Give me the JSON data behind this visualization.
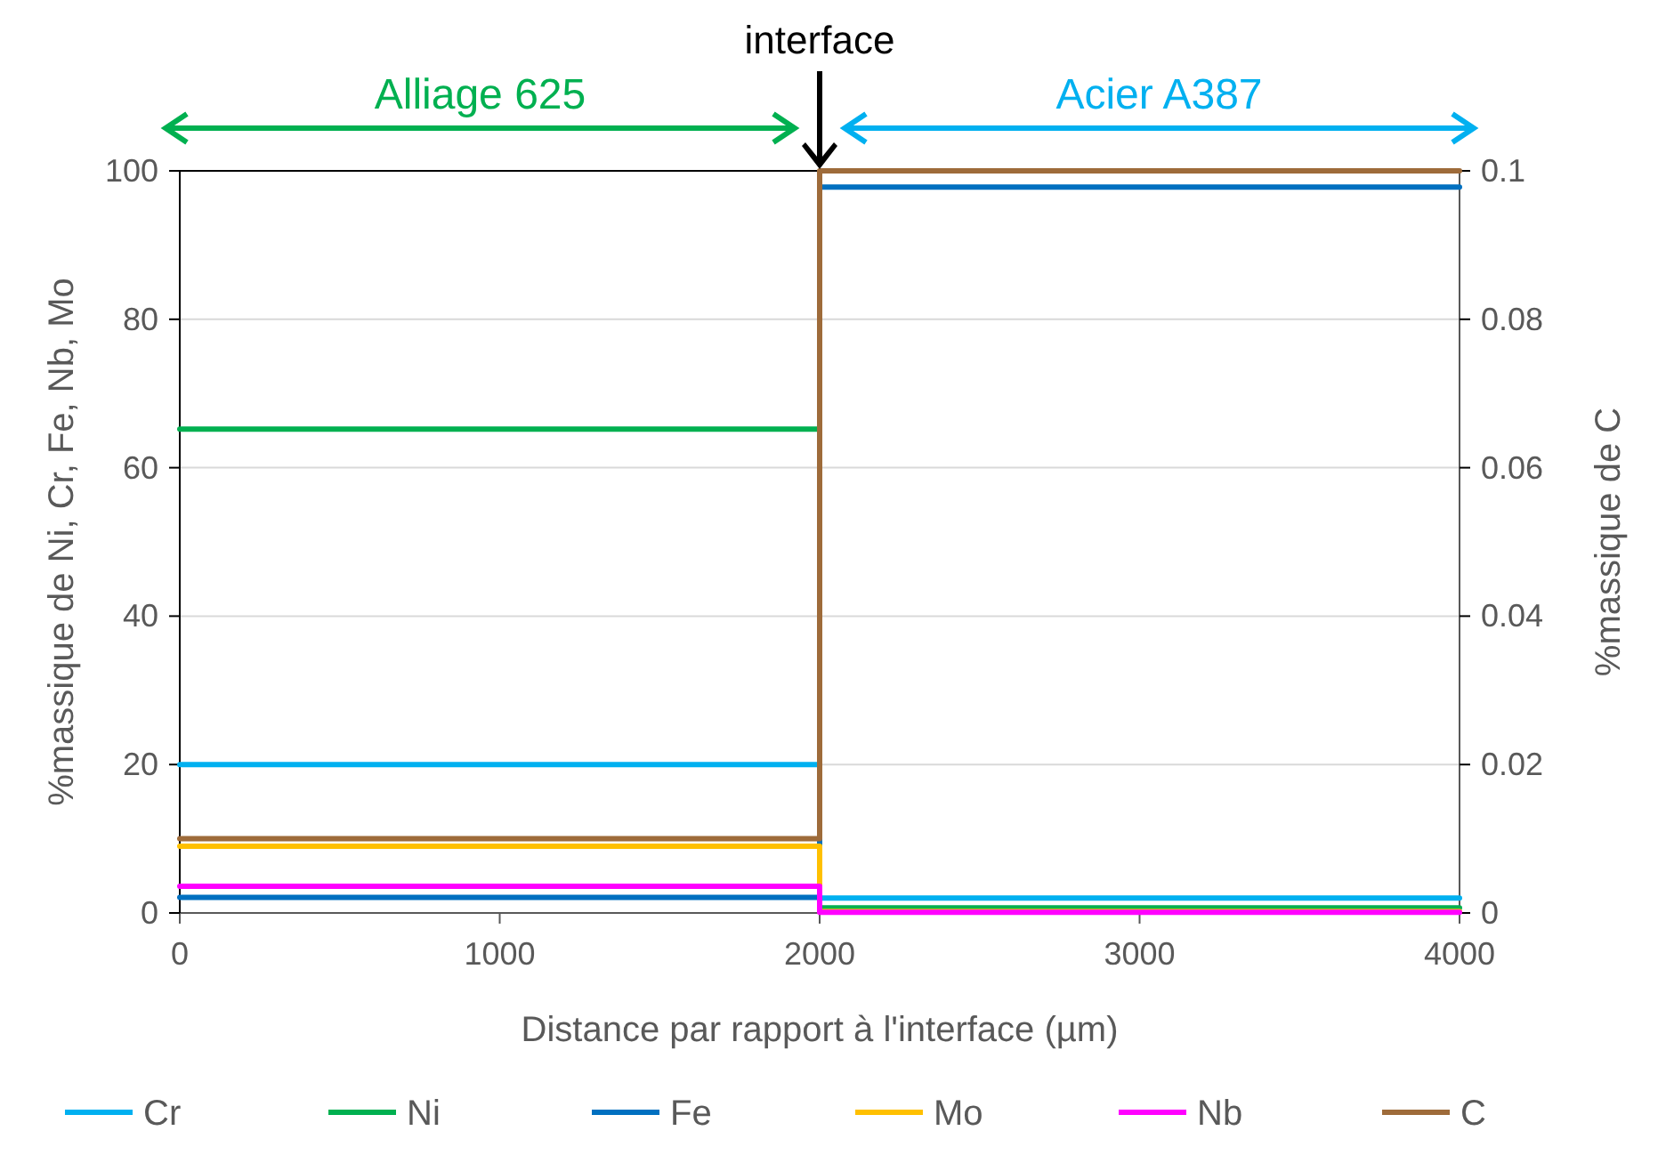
{
  "chart_data": {
    "type": "line",
    "xlabel": "Distance par rapport à l'interface (µm)",
    "ylabel": "%massique de Ni, Cr, Fe, Nb, Mo",
    "y2label": "%massique de C",
    "x": [
      0,
      2000,
      2000,
      4000
    ],
    "xlim": [
      0,
      4000
    ],
    "xticks": [
      0,
      1000,
      2000,
      3000,
      4000
    ],
    "ylim": [
      0,
      100
    ],
    "yticks": [
      0,
      20,
      40,
      60,
      80,
      100
    ],
    "y2lim": [
      0,
      0.1
    ],
    "y2ticks": [
      0,
      0.02,
      0.04,
      0.06,
      0.08,
      0.1
    ],
    "grid": "y",
    "legend": "bottom",
    "marker": "none",
    "line_style": "solid",
    "series": [
      {
        "name": "Cr",
        "color": "#00b0f0",
        "values": [
          20,
          20,
          2,
          2
        ]
      },
      {
        "name": "Ni",
        "color": "#00b050",
        "values": [
          65.2,
          65.2,
          0.7,
          0.7
        ]
      },
      {
        "name": "Fe",
        "color": "#0070c0",
        "values": [
          2.1,
          2.1,
          97.8,
          97.8
        ]
      },
      {
        "name": "Mo",
        "color": "#ffc000",
        "values": [
          9,
          9,
          0.2,
          0.2
        ]
      },
      {
        "name": "Nb",
        "color": "#ff00ff",
        "values": [
          3.6,
          3.6,
          0.1,
          0.1
        ]
      },
      {
        "name": "C",
        "color": "#9e6b3a",
        "values": [
          0.01,
          0.01,
          0.1,
          0.1
        ],
        "axis": "y2"
      }
    ],
    "annotations": [
      "interface",
      "Alliage 625",
      "Acier A387"
    ]
  }
}
